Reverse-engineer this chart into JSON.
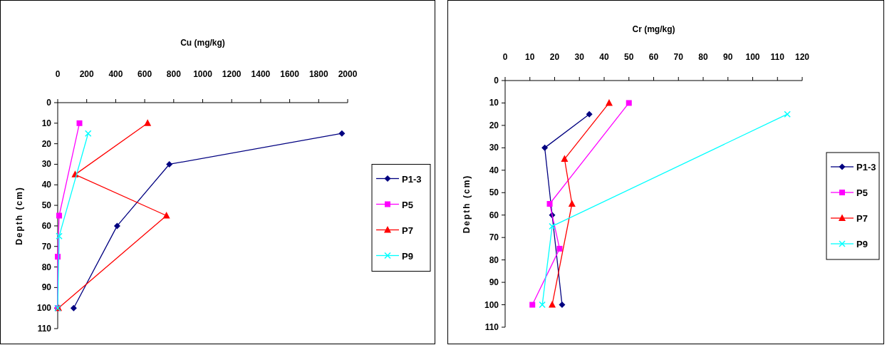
{
  "chart_data": [
    {
      "type": "line",
      "title": "Cu (mg/kg)",
      "ylabel": "Depth (cm)",
      "xlim": [
        0,
        2000
      ],
      "xticks": [
        0,
        200,
        400,
        600,
        800,
        1000,
        1200,
        1400,
        1600,
        1800,
        2000
      ],
      "ylim": [
        110,
        0
      ],
      "yticks": [
        0,
        10,
        20,
        30,
        40,
        50,
        60,
        70,
        80,
        90,
        100,
        110
      ],
      "grid": false,
      "legend": "right",
      "series": [
        {
          "name": "P1-3",
          "color": "#000080",
          "marker": "diamond",
          "x": [
            1960,
            770,
            410,
            110
          ],
          "values": [
            15,
            30,
            60,
            100
          ]
        },
        {
          "name": "P5",
          "color": "#ff00ff",
          "marker": "square",
          "x": [
            150,
            10,
            0,
            0
          ],
          "values": [
            10,
            55,
            75,
            100
          ]
        },
        {
          "name": "P7",
          "color": "#ff0000",
          "marker": "triangle",
          "x": [
            620,
            120,
            750,
            5
          ],
          "values": [
            10,
            35,
            55,
            100
          ]
        },
        {
          "name": "P9",
          "color": "#00ffff",
          "marker": "cross",
          "x": [
            210,
            10,
            0
          ],
          "values": [
            15,
            65,
            100
          ]
        }
      ]
    },
    {
      "type": "line",
      "title": "Cr (mg/kg)",
      "ylabel": "Depth (cm)",
      "xlim": [
        0,
        120
      ],
      "xticks": [
        0,
        10,
        20,
        30,
        40,
        50,
        60,
        70,
        80,
        90,
        100,
        110,
        120
      ],
      "ylim": [
        110,
        0
      ],
      "yticks": [
        0,
        10,
        20,
        30,
        40,
        50,
        60,
        70,
        80,
        90,
        100,
        110
      ],
      "grid": false,
      "legend": "right",
      "series": [
        {
          "name": "P1-3",
          "color": "#000080",
          "marker": "diamond",
          "x": [
            34,
            16,
            19,
            23
          ],
          "values": [
            15,
            30,
            60,
            100
          ]
        },
        {
          "name": "P5",
          "color": "#ff00ff",
          "marker": "square",
          "x": [
            50,
            18,
            22,
            11
          ],
          "values": [
            10,
            55,
            75,
            100
          ]
        },
        {
          "name": "P7",
          "color": "#ff0000",
          "marker": "triangle",
          "x": [
            42,
            24,
            27,
            19
          ],
          "values": [
            10,
            35,
            55,
            100
          ]
        },
        {
          "name": "P9",
          "color": "#00ffff",
          "marker": "cross",
          "x": [
            114,
            19,
            15
          ],
          "values": [
            15,
            65,
            100
          ]
        }
      ]
    }
  ]
}
